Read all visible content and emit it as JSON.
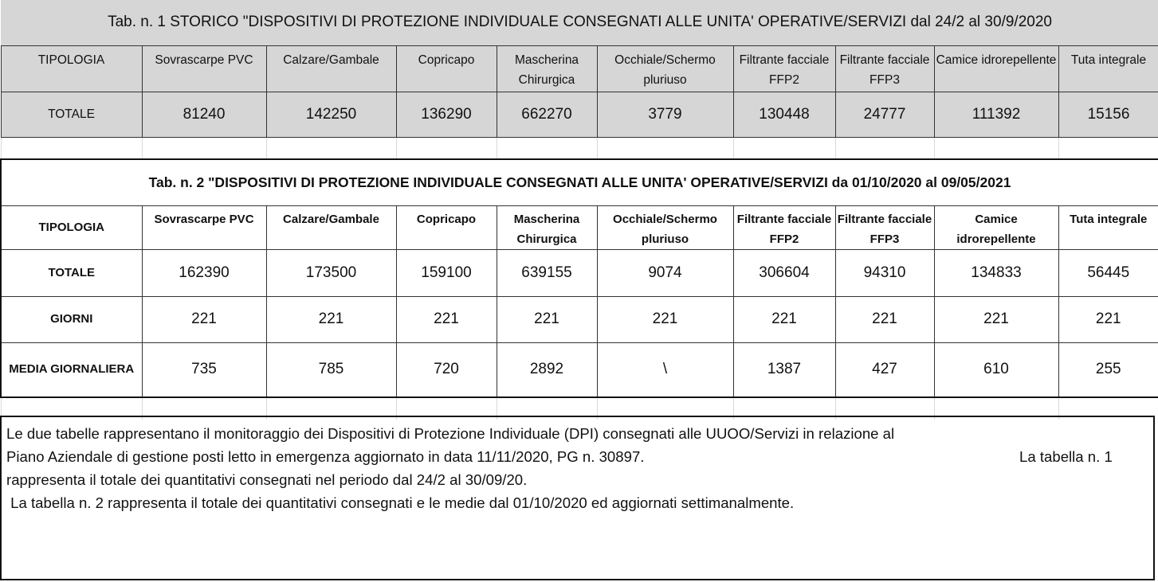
{
  "table1": {
    "title": "Tab. n. 1 STORICO \"DISPOSITIVI DI PROTEZIONE INDIVIDUALE CONSEGNATI ALLE UNITA' OPERATIVE/SERVIZI dal 24/2 al 30/9/2020",
    "header_label": "TIPOLOGIA",
    "columns": [
      "Sovrascarpe PVC",
      "Calzare/Gambale",
      "Copricapo",
      "Mascherina Chirurgica",
      "Occhiale/Schermo pluriuso",
      "Filtrante facciale FFP2",
      "Filtrante facciale FFP3",
      "Camice idrorepellente",
      "Tuta integrale"
    ],
    "total_label": "TOTALE",
    "totals": [
      "81240",
      "142250",
      "136290",
      "662270",
      "3779",
      "130448",
      "24777",
      "111392",
      "15156"
    ]
  },
  "table2": {
    "title": "Tab. n. 2 \"DISPOSITIVI DI PROTEZIONE INDIVIDUALE CONSEGNATI ALLE UNITA' OPERATIVE/SERVIZI da 01/10/2020 al 09/05/2021",
    "header_label": "TIPOLOGIA",
    "columns": [
      "Sovrascarpe PVC",
      "Calzare/Gambale",
      "Copricapo",
      "Mascherina Chirurgica",
      "Occhiale/Schermo pluriuso",
      "Filtrante facciale FFP2",
      "Filtrante facciale FFP3",
      "Camice idrorepellente",
      "Tuta integrale"
    ],
    "rows": [
      {
        "label": "TOTALE",
        "values": [
          "162390",
          "173500",
          "159100",
          "639155",
          "9074",
          "306604",
          "94310",
          "134833",
          "56445"
        ]
      },
      {
        "label": "GIORNI",
        "values": [
          "221",
          "221",
          "221",
          "221",
          "221",
          "221",
          "221",
          "221",
          "221"
        ]
      },
      {
        "label": "MEDIA GIORNALIERA",
        "values": [
          "735",
          "785",
          "720",
          "2892",
          "\\",
          "1387",
          "427",
          "610",
          "255"
        ]
      }
    ]
  },
  "note": {
    "line1": "Le due tabelle rappresentano il monitoraggio dei Dispositivi di Protezione Individuale (DPI) consegnati alle UUOO/Servizi in relazione al",
    "line2": "Piano Aziendale di gestione posti letto in emergenza aggiornato in data 11/11/2020, PG n. 30897.",
    "line2_right": "La tabella n. 1",
    "line3": "rappresenta il totale dei quantitativi consegnati nel periodo dal 24/2 al 30/09/20.",
    "line4": " La tabella n. 2 rappresenta il totale dei quantitativi consegnati e le medie dal 01/10/2020 ed aggiornati settimanalmente."
  }
}
